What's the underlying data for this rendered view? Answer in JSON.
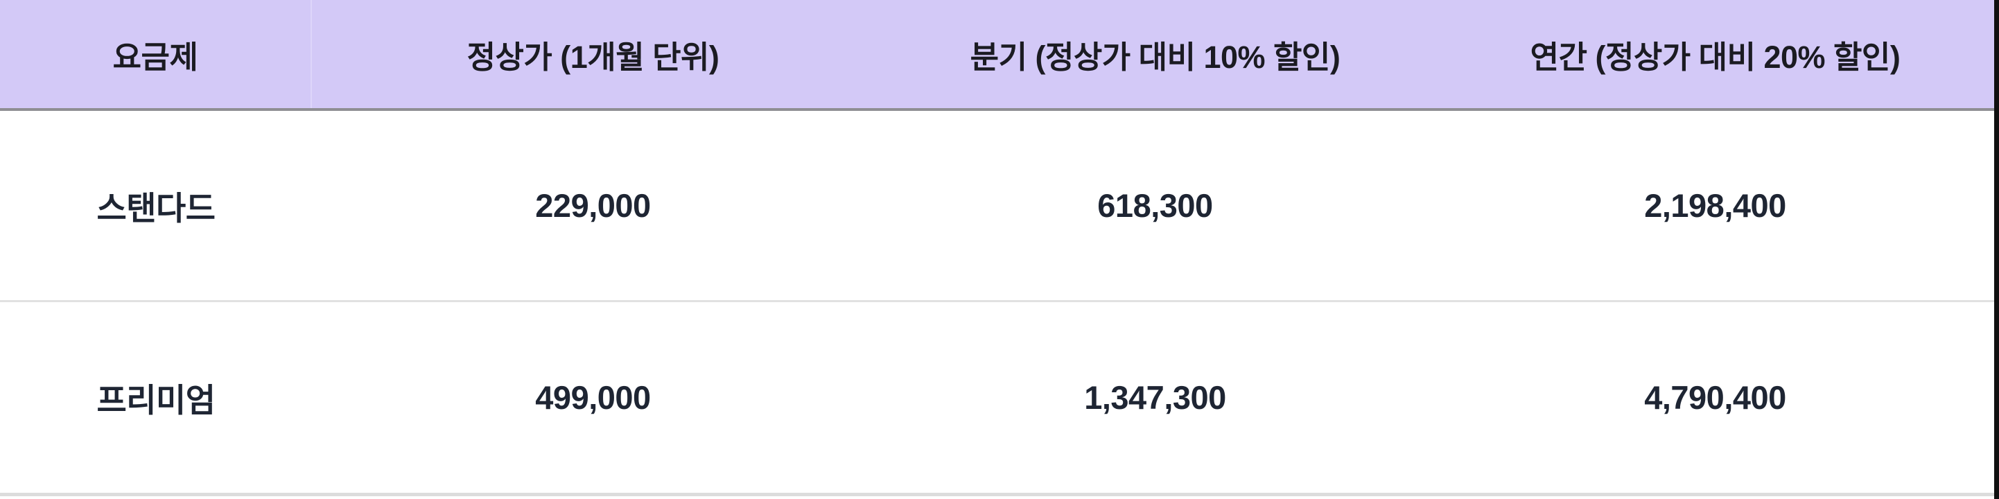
{
  "colors": {
    "header_bg": "#d3c9f7",
    "header_text": "#1b1b22",
    "cell_text": "#1e2533",
    "header_border": "#8e8e93",
    "header_col_divider": "#ded6fa",
    "row_divider": "#e1e1e1",
    "bottom_strip": "#dcdcdc",
    "right_edge": "#101010",
    "row_bg": "#ffffff"
  },
  "table": {
    "columns": [
      {
        "label": "요금제"
      },
      {
        "label": "정상가 (1개월 단위)"
      },
      {
        "label": "분기 (정상가 대비 10% 할인)"
      },
      {
        "label": "연간 (정상가 대비 20% 할인)"
      }
    ],
    "rows": [
      {
        "plan": "스탠다드",
        "monthly": "229,000",
        "quarterly": "618,300",
        "yearly": "2,198,400"
      },
      {
        "plan": "프리미엄",
        "monthly": "499,000",
        "quarterly": "1,347,300",
        "yearly": "4,790,400"
      }
    ]
  },
  "chart_data": {
    "type": "table",
    "columns": [
      "요금제",
      "정상가 (1개월 단위)",
      "분기 (정상가 대비 10% 할인)",
      "연간 (정상가 대비 20% 할인)"
    ],
    "rows": [
      [
        "스탠다드",
        229000,
        618300,
        2198400
      ],
      [
        "프리미엄",
        499000,
        1347300,
        4790400
      ]
    ]
  }
}
